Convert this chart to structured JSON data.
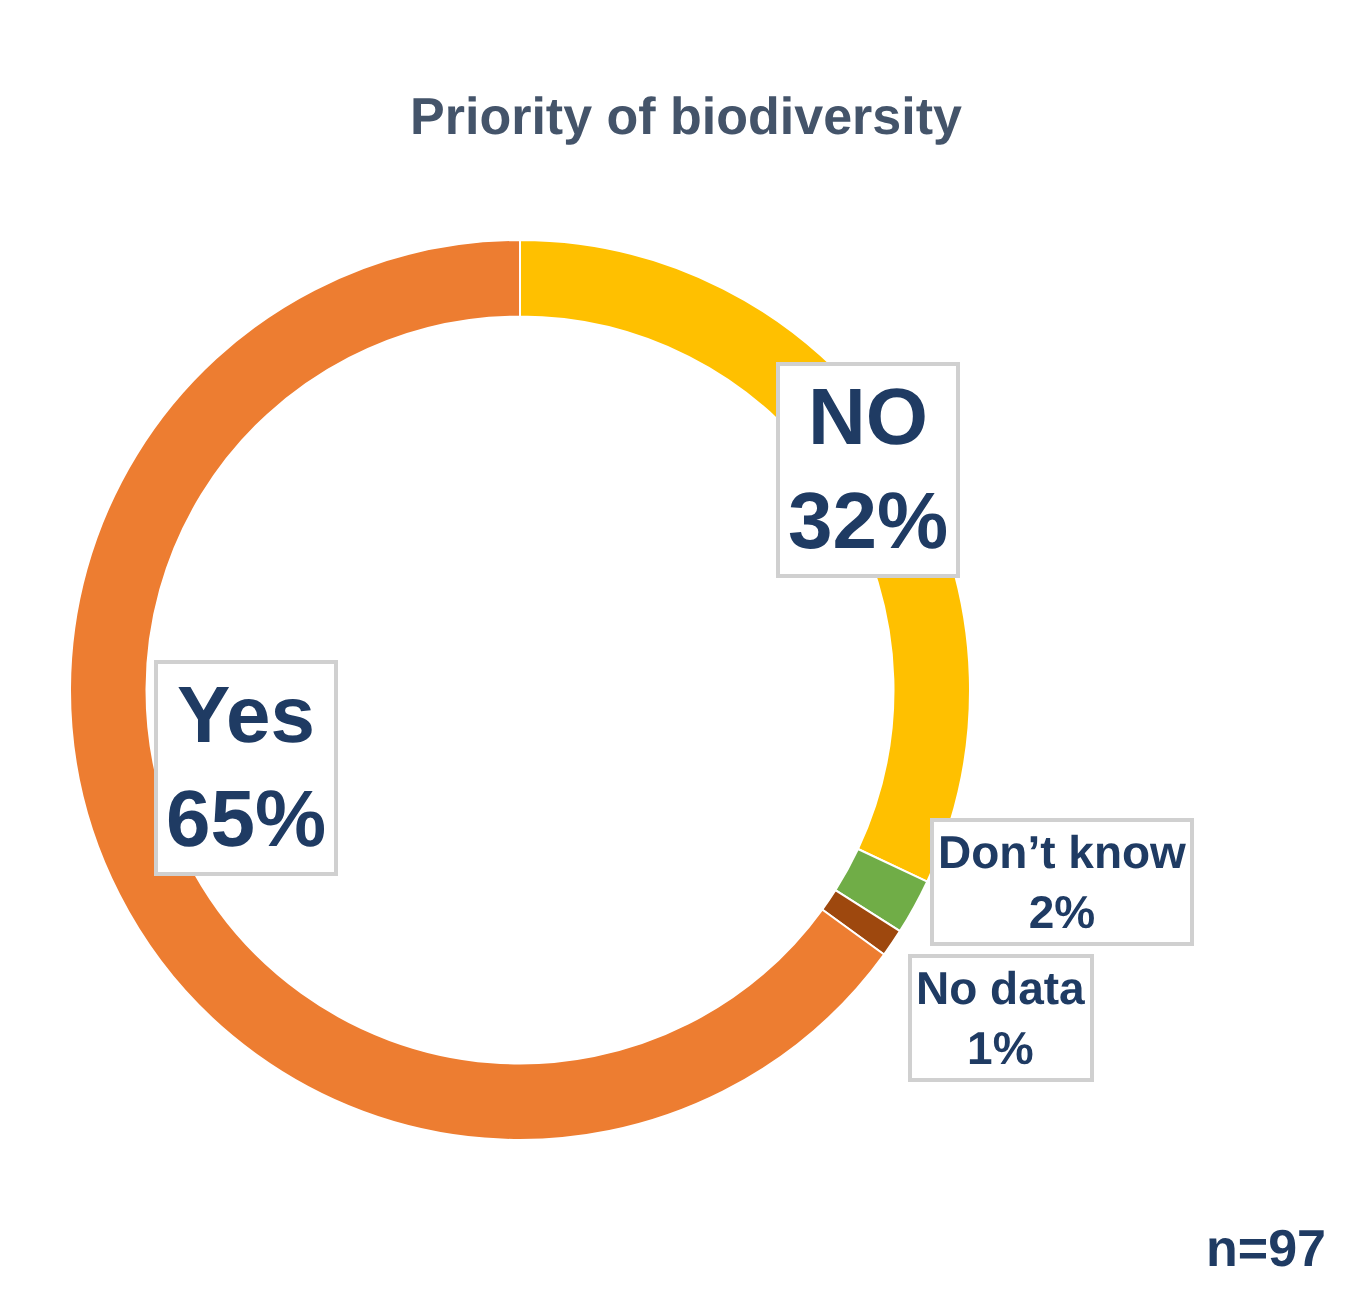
{
  "chart_data": {
    "type": "donut",
    "title": "Priority of biodiversity",
    "categories": [
      "NO",
      "Don’t know",
      "No data",
      "Yes"
    ],
    "values": [
      32,
      2,
      1,
      65
    ],
    "value_labels": [
      "32%",
      "2%",
      "1%",
      "65%"
    ],
    "colors": [
      "#ffc000",
      "#70ad47",
      "#9e480e",
      "#ed7d31"
    ],
    "legend": false,
    "annotations": [
      "n=97"
    ]
  }
}
